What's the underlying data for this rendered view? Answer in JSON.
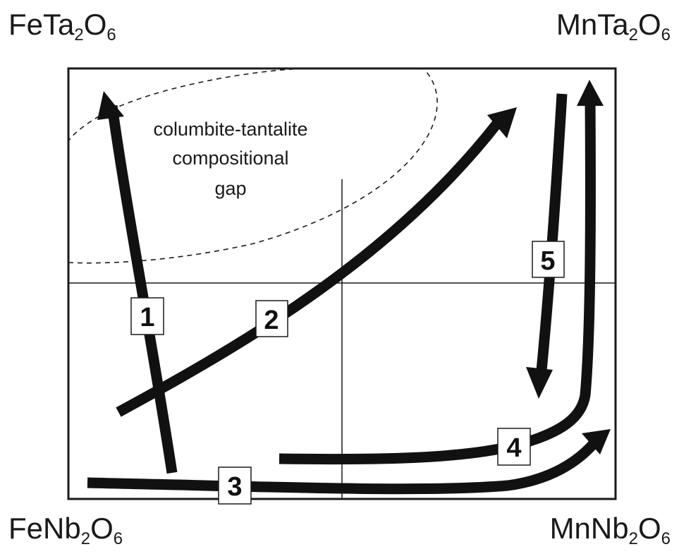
{
  "corners": {
    "top_left": {
      "base": "FeTa",
      "sub1": "2",
      "mid": "O",
      "sub2": "6"
    },
    "top_right": {
      "base": "MnTa",
      "sub1": "2",
      "mid": "O",
      "sub2": "6"
    },
    "bottom_left": {
      "base": "FeNb",
      "sub1": "2",
      "mid": "O",
      "sub2": "6"
    },
    "bottom_right": {
      "base": "MnNb",
      "sub1": "2",
      "mid": "O",
      "sub2": "6"
    }
  },
  "gap_region": {
    "lines": [
      "columbite-tantalite",
      "compositional",
      "gap"
    ],
    "style": "dashed"
  },
  "trends": [
    {
      "number": "1"
    },
    {
      "number": "2"
    },
    {
      "number": "3"
    },
    {
      "number": "4"
    },
    {
      "number": "5"
    }
  ],
  "colors": {
    "ink": "#1a1a1a",
    "background": "#ffffff"
  }
}
